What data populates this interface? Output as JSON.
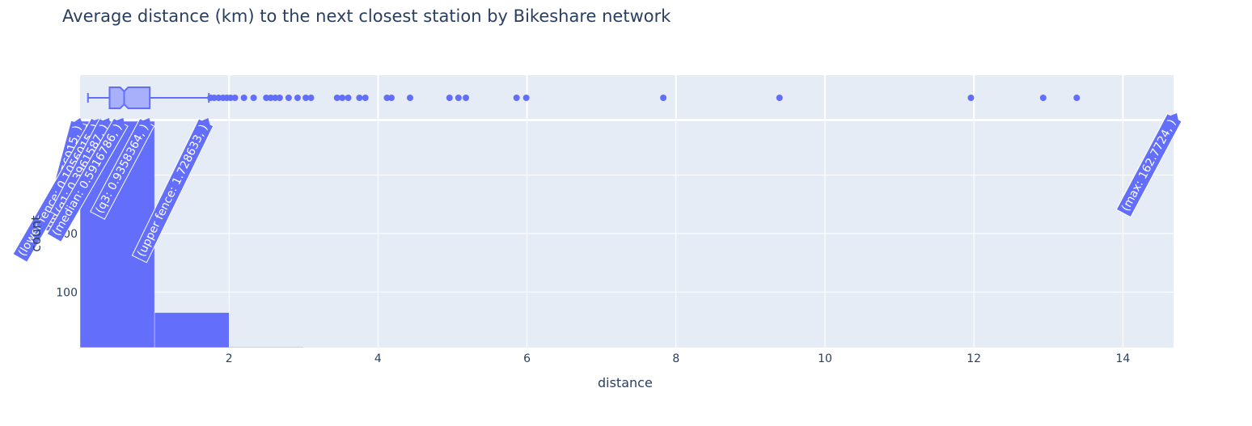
{
  "chart_data": {
    "type": "histogram",
    "title": "Average distance (km) to the next closest station by Bikeshare network",
    "xlabel": "distance",
    "ylabel": "count",
    "xlim": [
      0,
      14.68
    ],
    "ylim": [
      5,
      392
    ],
    "x_ticks": [
      "2",
      "4",
      "6",
      "8",
      "10",
      "12",
      "14"
    ],
    "x_tick_values": [
      2,
      4,
      6,
      8,
      10,
      12,
      14
    ],
    "y_ticks": [
      "100",
      "200",
      "300"
    ],
    "y_tick_values": [
      100,
      200,
      300
    ],
    "grid": true,
    "colors": {
      "marker": "#636efa",
      "plot_bg": "#e5ecf6",
      "grid": "#ffffff",
      "text": "#2a3f5f",
      "box_fill": "#a9b0fb"
    },
    "histogram": {
      "bins": [
        {
          "x0": 0,
          "x1": 1,
          "count": 392
        },
        {
          "x0": 1,
          "x1": 2,
          "count": 65
        },
        {
          "x0": 2,
          "x1": 3,
          "count": 6
        },
        {
          "x0": 3,
          "x1": 4,
          "count": 5
        }
      ]
    },
    "marginal_box": {
      "min": 0.1056015,
      "lower_fence": 0.1056015,
      "q1": 0.3961587,
      "median": 0.5916786,
      "q3": 0.9358364,
      "upper_fence": 1.728633,
      "max": 162.7724,
      "outliers": [
        1.75,
        1.8,
        1.86,
        1.92,
        1.97,
        2.02,
        2.08,
        2.2,
        2.33,
        2.5,
        2.56,
        2.62,
        2.68,
        2.8,
        2.92,
        3.03,
        3.1,
        3.45,
        3.52,
        3.6,
        3.75,
        3.83,
        4.12,
        4.18,
        4.43,
        4.96,
        5.08,
        5.18,
        5.86,
        5.99,
        7.83,
        9.39,
        11.96,
        12.93,
        13.38
      ]
    },
    "annotations": [
      {
        "key": "min",
        "label": "(min: 0.1056015, )"
      },
      {
        "key": "lower_fence",
        "label": "(lower fence: 0.1056015, )"
      },
      {
        "key": "q1",
        "label": "(q1: 0.3961587, )"
      },
      {
        "key": "median",
        "label": "(median: 0.5916786, )"
      },
      {
        "key": "q3",
        "label": "(q3: 0.9358364, )"
      },
      {
        "key": "upper_fence",
        "label": "(upper fence: 1.728633, )"
      },
      {
        "key": "max",
        "label": "(max: 162.7724, )"
      }
    ]
  }
}
